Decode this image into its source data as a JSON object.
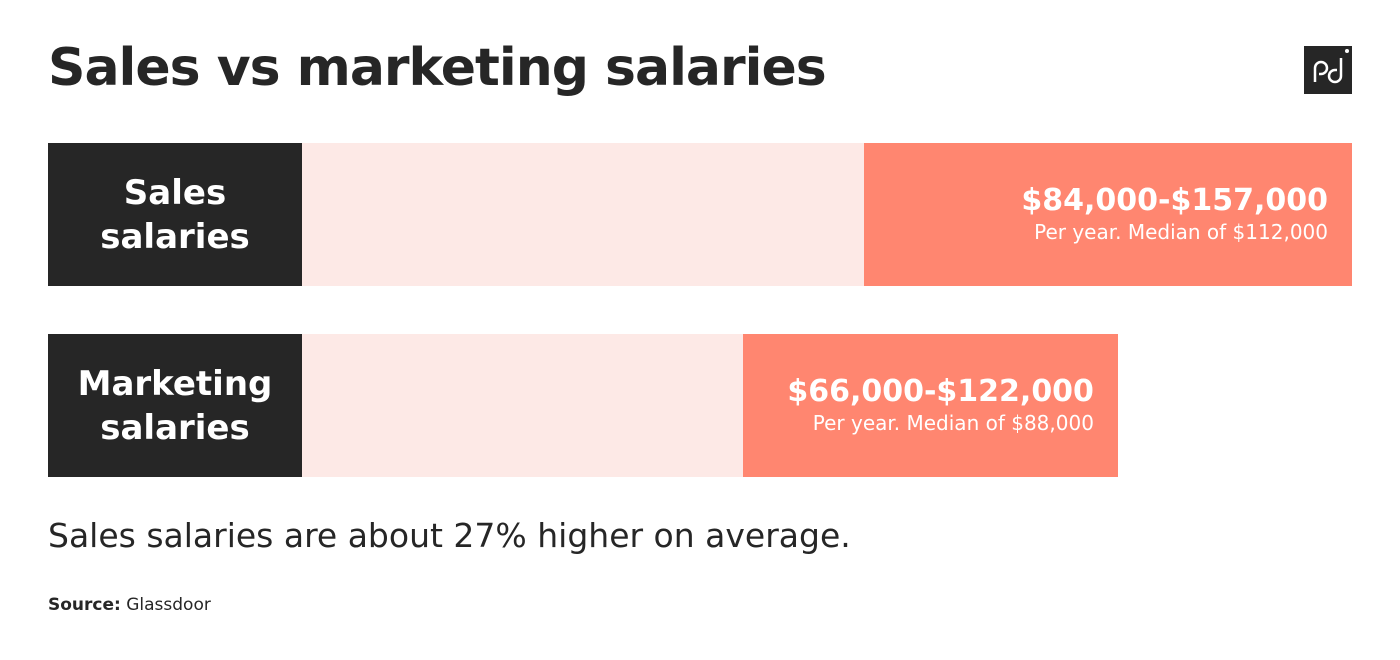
{
  "chart_data": {
    "type": "range_bar",
    "title": "Sales vs marketing salaries",
    "categories": [
      "Sales salaries",
      "Marketing salaries"
    ],
    "low": [
      84000,
      66000
    ],
    "high": [
      157000,
      122000
    ],
    "value_labels": [
      "$84,000-$157,000",
      "$66,000-$122,000"
    ],
    "notes": [
      "Per year. Median of $112,000",
      "Per year. Median of $88,000"
    ],
    "xlim": [
      0,
      157000
    ],
    "colors": {
      "label_box": "#262626",
      "track": "#fde9e6",
      "range": "#ff8670"
    },
    "annotation": "Sales salaries are about 27% higher on average.",
    "source_label": "Source:",
    "source": "Glassdoor"
  }
}
